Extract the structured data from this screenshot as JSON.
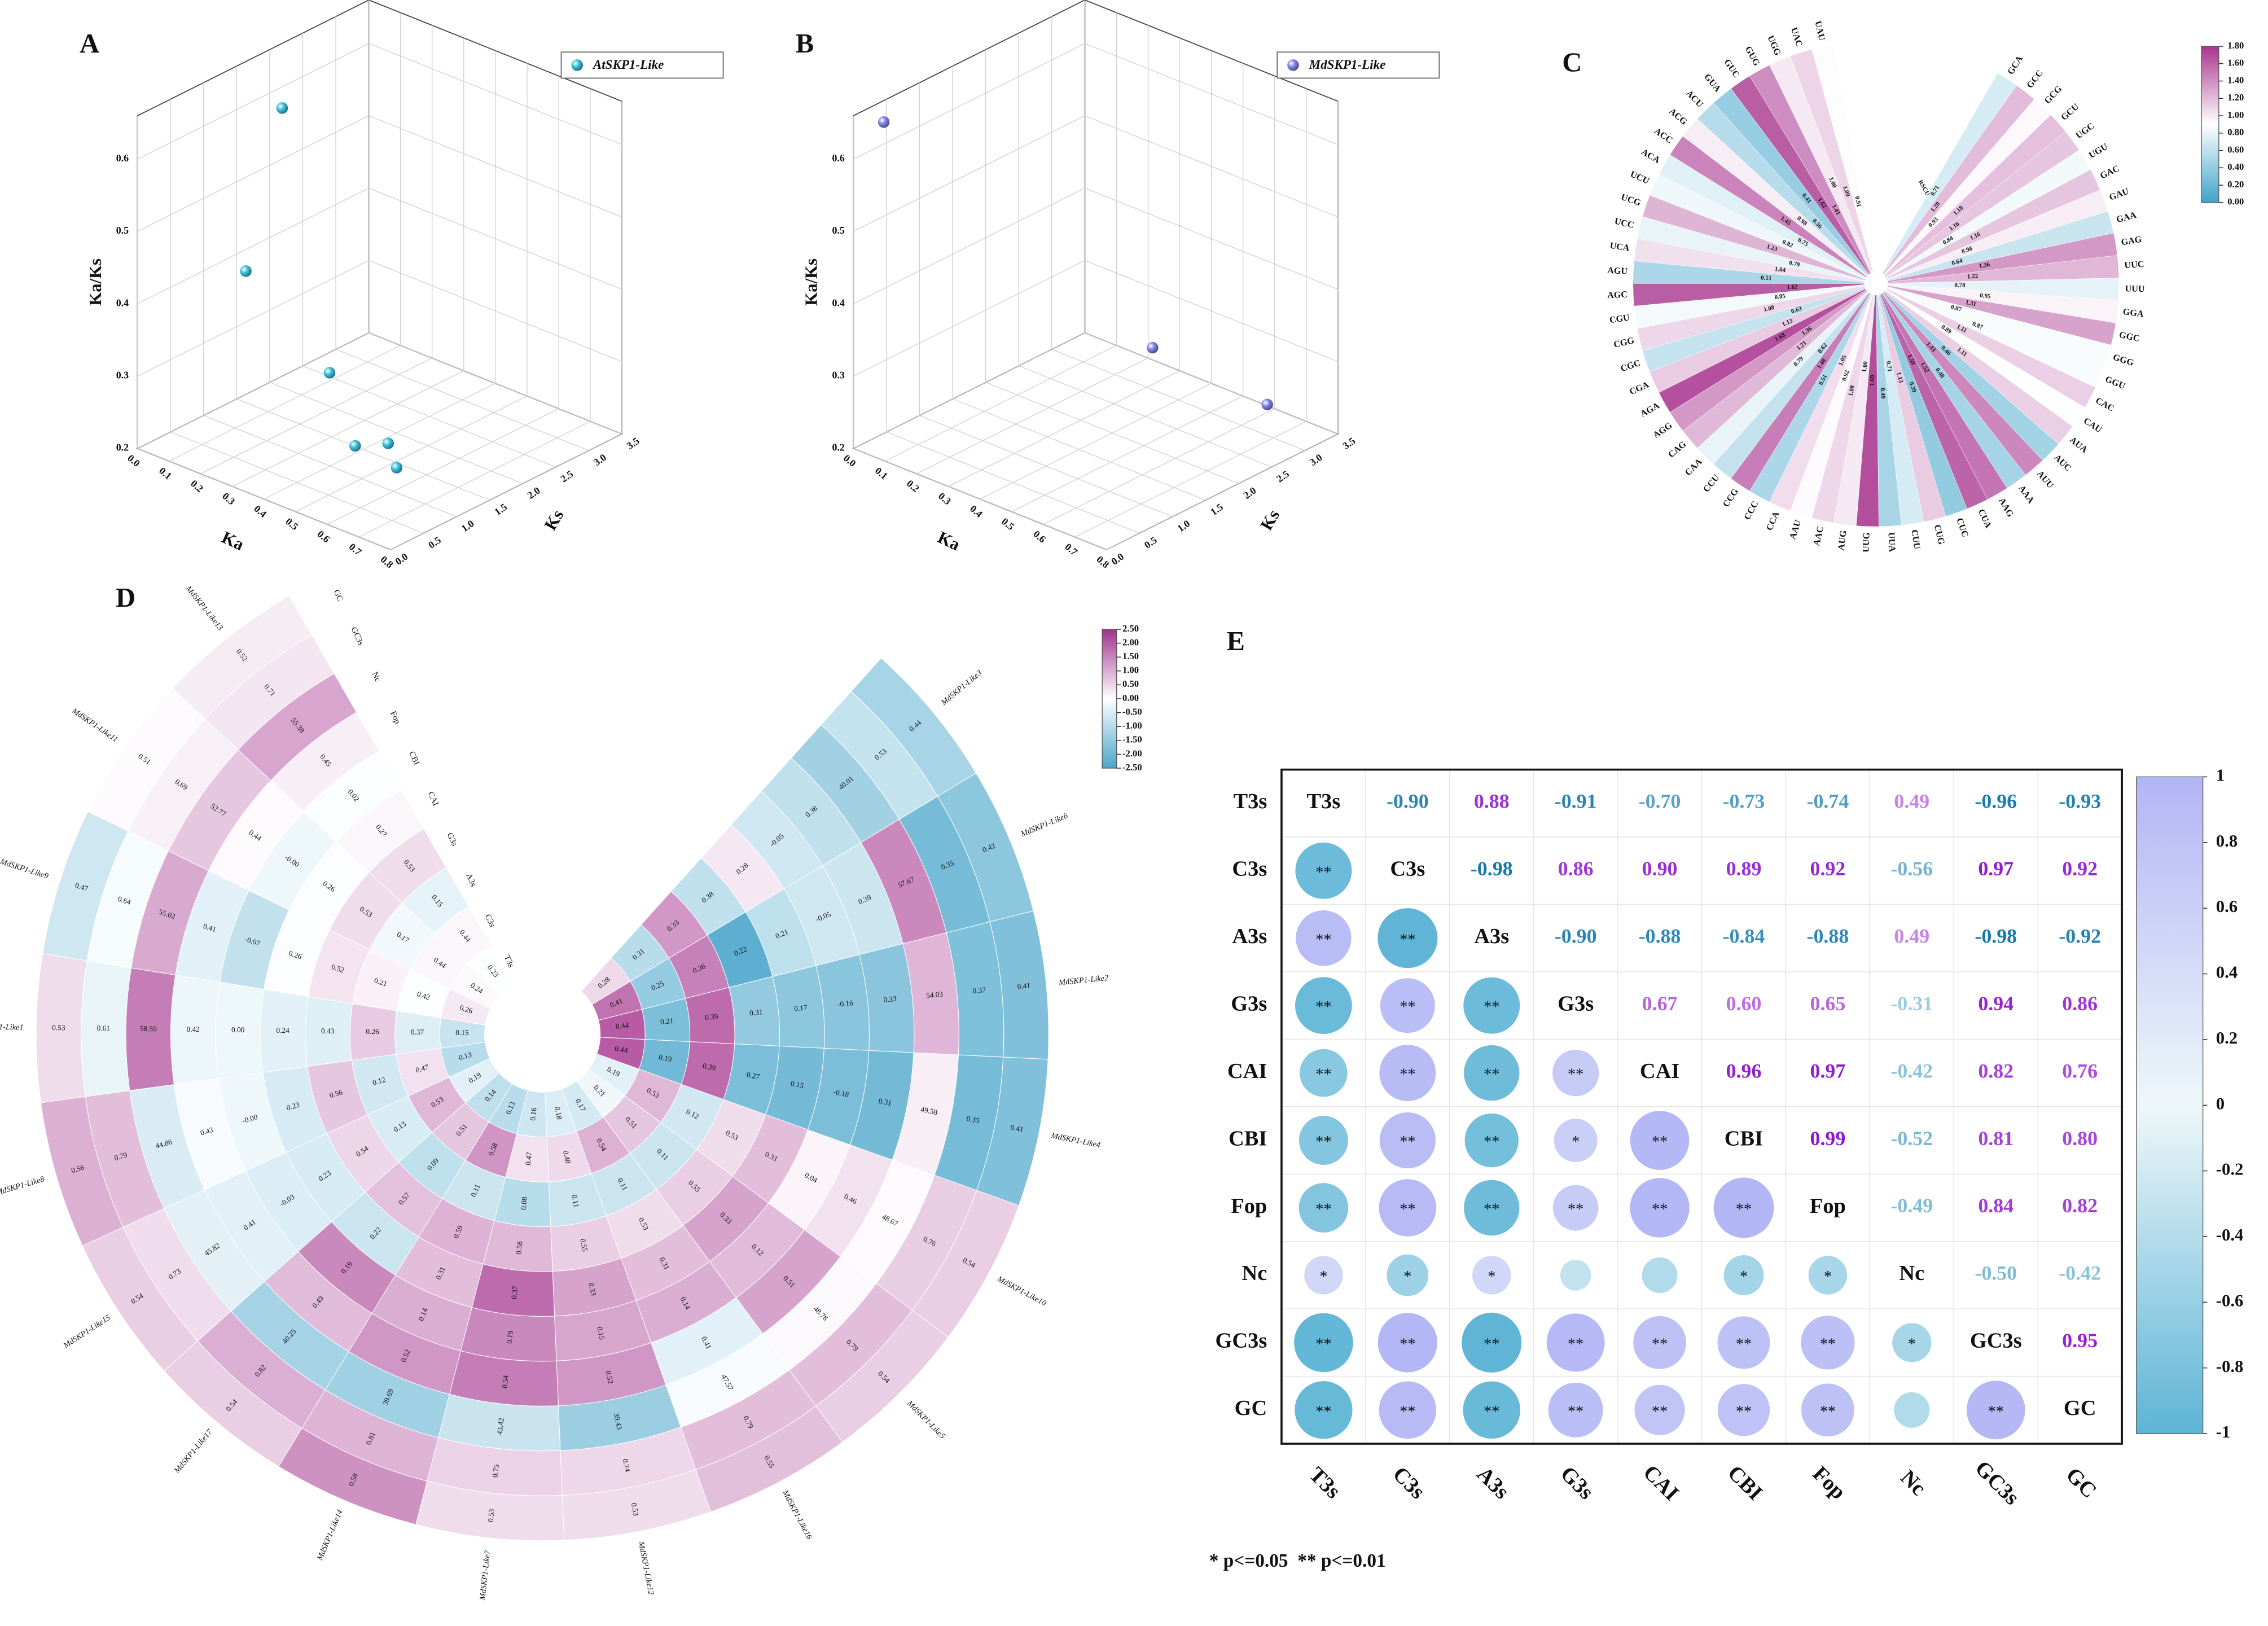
{
  "chart_data": [
    {
      "label": "A",
      "type": "scatter3d",
      "legend": "AtSKP1-Like",
      "color": "#39c0de",
      "x_label": "Ka",
      "y_label": "Ks",
      "z_label": "Ka/Ks",
      "x": [
        0.1,
        0.05,
        0.3,
        0.5,
        0.6,
        0.7
      ],
      "y": [
        1.71,
        1.4,
        1.47,
        0.9,
        0.92,
        0.57
      ],
      "z": [
        0.61,
        0.39,
        0.29,
        0.25,
        0.27,
        0.27
      ],
      "xlim": [
        0,
        0.8
      ],
      "xticks": [
        {
          "value": 0,
          "label": "0.0"
        },
        0.1,
        0.2,
        0.3,
        0.4,
        0.5,
        0.6,
        0.7,
        0.8
      ],
      "ylim": [
        0,
        3.5
      ],
      "yticks": [
        {
          "value": 0,
          "label": "0.0"
        },
        0.5,
        {
          "value": 1,
          "label": "1.0"
        },
        1.5,
        {
          "value": 2,
          "label": "2.0"
        },
        2.5,
        {
          "value": 3,
          "label": "3.0"
        },
        3.5
      ],
      "zlim": [
        0.2,
        0.66
      ],
      "zticks": [
        0.2,
        0.3,
        0.4,
        0.5,
        0.6
      ]
    },
    {
      "label": "B",
      "type": "scatter3d",
      "legend": "MdSKP1-Like",
      "color": "#7f84e6",
      "x_label": "Ka",
      "y_label": "Ks",
      "z_label": "Ka/Ks",
      "x": [
        0.05,
        0.4,
        0.75
      ],
      "y": [
        0.22,
        2.61,
        2.67
      ],
      "z": [
        0.65,
        0.29,
        0.27
      ],
      "xlim": [
        0,
        0.8
      ],
      "xticks": [
        {
          "value": 0,
          "label": "0.0"
        },
        0.1,
        0.2,
        0.3,
        0.4,
        0.5,
        0.6,
        0.7,
        0.8
      ],
      "ylim": [
        0,
        3.5
      ],
      "yticks": [
        {
          "value": 0,
          "label": "0.0"
        },
        0.5,
        {
          "value": 1,
          "label": "1.0"
        },
        1.5,
        {
          "value": 2,
          "label": "2.0"
        },
        2.5,
        {
          "value": 3,
          "label": "3.0"
        },
        3.5
      ],
      "zlim": [
        0.2,
        0.66
      ],
      "zticks": [
        0.2,
        0.3,
        0.4,
        0.5,
        0.6
      ]
    },
    {
      "label": "C",
      "type": "radial_heatmap",
      "value_title": "RSCU",
      "categories": [
        "UAU",
        "UAC",
        "UGG",
        "GUG",
        "GUC",
        "GUA",
        "ACU",
        "ACG",
        "ACC",
        "ACA",
        "UCU",
        "UCG",
        "UCC",
        "UCA",
        "AGU",
        "AGC",
        "CGU",
        "CGG",
        "CGC",
        "CGA",
        "AGA",
        "AGG",
        "CAG",
        "CAA",
        "CCU",
        "CCG",
        "CCC",
        "CCA",
        "AAU",
        "AAC",
        "AUG",
        "UUG",
        "UUA",
        "CUU",
        "CUG",
        "CUC",
        "CUA",
        "AAG",
        "AAA",
        "AUU",
        "AUC",
        "AUA",
        "CAU",
        "CAC",
        "GGU",
        "GGG",
        "GGC",
        "GGA",
        "UUU",
        "UUC",
        "GAG",
        "GAA",
        "GAU",
        "GAC",
        "UGU",
        "UGC",
        "GCU",
        "GCG",
        "GCC",
        "GCA"
      ],
      "values": [
        0.91,
        1.09,
        1,
        1.41,
        1.62,
        0.41,
        0.56,
        0.98,
        1.45,
        0.75,
        0.82,
        1.23,
        0.79,
        1.04,
        0.51,
        1.62,
        0.85,
        1.08,
        0.63,
        1.13,
        1.68,
        1.36,
        1.21,
        0.79,
        0.62,
        1.48,
        0.51,
        1.05,
        0.92,
        1.08,
        1,
        1.69,
        0.49,
        0.71,
        1.13,
        0.39,
        1.59,
        1.52,
        0.48,
        1.43,
        0.46,
        1.11,
        0.89,
        1.11,
        0.87,
        0.87,
        1.31,
        0.95,
        0.78,
        1.22,
        1.36,
        0.64,
        0.98,
        1.16,
        0.84,
        1.16,
        1.18,
        0.93,
        1.2,
        0.71
      ],
      "value_labels": [
        "0.91",
        "1.09",
        "1.00",
        "1.41",
        "1.62",
        "0.41",
        "0.56",
        "0.98",
        "1.45",
        "0.75",
        "0.82",
        "1.23",
        "0.79",
        "1.04",
        "0.51",
        "1.62",
        "0.85",
        "1.08",
        "0.63",
        "1.13",
        "1.68",
        "1.36",
        "1.21",
        "0.79",
        "0.62",
        "1.48",
        "0.51",
        "1.05",
        "0.92",
        "1.08",
        "1.00",
        "1.69",
        "0.49",
        "0.71",
        "1.13",
        "0.39",
        "1.59",
        "1.52",
        "0.48",
        "1.43",
        "0.46",
        "1.11",
        "0.89",
        "1.11",
        "0.87",
        "0.87",
        "1.31",
        "0.95",
        "0.78",
        "1.22",
        "1.36",
        "0.64",
        "0.98",
        "1.16",
        "0.84",
        "1.16",
        "1.18",
        "0.93",
        "1.20",
        "0.71"
      ],
      "colors": [
        "#3fa3c9",
        "#ffffff",
        "#a8358f"
      ],
      "clim": [
        0,
        1.8
      ],
      "cticks": [
        {
          "value": 0,
          "label": "0.00"
        },
        {
          "value": 0.2,
          "label": "0.20"
        },
        {
          "value": 0.4,
          "label": "0.40"
        },
        {
          "value": 0.6,
          "label": "0.60"
        },
        {
          "value": 0.8,
          "label": "0.80"
        },
        {
          "value": 1,
          "label": "1.00"
        },
        {
          "value": 1.2,
          "label": "1.20"
        },
        {
          "value": 1.4,
          "label": "1.40"
        },
        {
          "value": 1.6,
          "label": "1.60"
        },
        {
          "value": 1.8,
          "label": "1.80"
        }
      ]
    },
    {
      "label": "D",
      "type": "circular_heatmap",
      "categories": [
        "MdSKP1-Like13",
        "MdSKP1-Like11",
        "MdSKP1-Like9",
        "MdSKP1-Like1",
        "MdSKP1-Like8",
        "MdSKP1-Like15",
        "MdSKP1-Like17",
        "MdSKP1-Like14",
        "MdSKP1-Like7",
        "MdSKP1-Like12",
        "MdSKP1-Like16",
        "MdSKP1-Like5",
        "MdSKP1-Like10",
        "MdSKP1-Like4",
        "MdSKP1-Like2",
        "MdSKP1-Like6",
        "MdSKP1-Like3"
      ],
      "series": [
        {
          "name": "T3s",
          "values": [
            0.23,
            0.24,
            0.26,
            0.15,
            0.13,
            0.19,
            0.14,
            0.13,
            0.16,
            0.18,
            0.17,
            0.21,
            0.19,
            0.44,
            0.44,
            0.41,
            0.28
          ]
        },
        {
          "name": "C3s",
          "values": [
            0.44,
            0.44,
            0.42,
            0.37,
            0.47,
            0.53,
            0.51,
            0.58,
            0.47,
            0.48,
            0.54,
            0.51,
            0.53,
            0.19,
            0.21,
            0.25,
            0.31
          ]
        },
        {
          "name": "A3s",
          "values": [
            0.15,
            0.17,
            0.21,
            0.26,
            0.12,
            0.13,
            0.09,
            0.11,
            0.08,
            0.11,
            0.11,
            0.11,
            0.12,
            0.39,
            0.39,
            0.36,
            0.33
          ]
        },
        {
          "name": "G3s",
          "values": [
            0.53,
            0.53,
            0.52,
            0.43,
            0.56,
            0.54,
            0.57,
            0.59,
            0.58,
            0.55,
            0.53,
            0.55,
            0.53,
            0.27,
            0.31,
            0.22,
            0.38
          ]
        },
        {
          "name": "CAI",
          "values": [
            0.27,
            0.26,
            0.26,
            0.24,
            0.23,
            0.23,
            0.22,
            0.31,
            0.37,
            0.33,
            0.31,
            0.33,
            0.31,
            0.15,
            0.17,
            0.21,
            0.28
          ]
        },
        {
          "name": "CBI",
          "values": [
            0.02,
            0,
            -0.07,
            0,
            0,
            -0.03,
            0.19,
            0.14,
            0.19,
            0.15,
            0.14,
            0.12,
            0.04,
            -0.18,
            -0.16,
            -0.05,
            -0.05
          ],
          "value_labels": [
            "0.02",
            "-0.00",
            "-0.07",
            "0.00",
            "-0.00",
            "-0.03",
            "0.19",
            "0.14",
            "0.19",
            "0.15",
            "0.14",
            "0.12",
            "0.04",
            "-0.18",
            "-0.16",
            "-0.05",
            "-0.05"
          ]
        },
        {
          "name": "Fop",
          "values": [
            0.45,
            0.44,
            0.41,
            0.42,
            0.43,
            0.41,
            0.49,
            0.52,
            0.54,
            0.52,
            0.41,
            0.51,
            0.46,
            0.31,
            0.33,
            0.39,
            0.38
          ]
        },
        {
          "name": "Nc",
          "values": [
            55.38,
            52.77,
            55.02,
            58.59,
            44.86,
            45.82,
            40.25,
            39.69,
            43.42,
            39.43,
            47.57,
            48.78,
            48.67,
            49.58,
            54.03,
            57.67,
            40.01
          ]
        },
        {
          "name": "GC3s",
          "values": [
            0.71,
            0.69,
            0.64,
            0.61,
            0.79,
            0.73,
            0.82,
            0.81,
            0.75,
            0.74,
            0.79,
            0.79,
            0.76,
            0.35,
            0.37,
            0.35,
            0.53
          ]
        },
        {
          "name": "GC",
          "values": [
            0.52,
            0.51,
            0.47,
            0.53,
            0.56,
            0.54,
            0.54,
            0.58,
            0.53,
            0.53,
            0.55,
            0.54,
            0.54,
            0.41,
            0.41,
            0.42,
            0.44
          ]
        }
      ],
      "colors": [
        "#4ba6cb",
        "#ffffff",
        "#a3318d"
      ],
      "clim": [
        -2.5,
        2.5
      ],
      "cticks": [
        {
          "value": -2.5,
          "label": "-2.50"
        },
        {
          "value": -2,
          "label": "-2.00"
        },
        {
          "value": -1.5,
          "label": "-1.50"
        },
        {
          "value": -1,
          "label": "-1.00"
        },
        {
          "value": -0.5,
          "label": "-0.50"
        },
        {
          "value": 0,
          "label": "0.00"
        },
        {
          "value": 0.5,
          "label": "0.50"
        },
        {
          "value": 1,
          "label": "1.00"
        },
        {
          "value": 1.5,
          "label": "1.50"
        },
        {
          "value": 2,
          "label": "2.00"
        },
        {
          "value": 2.5,
          "label": "2.50"
        }
      ]
    },
    {
      "label": "E",
      "type": "correlation_matrix",
      "variables": [
        "T3s",
        "C3s",
        "A3s",
        "G3s",
        "CAI",
        "CBI",
        "Fop",
        "Nc",
        "GC3s",
        "GC"
      ],
      "r": [
        [
          -0.9,
          0.88,
          -0.91,
          -0.7,
          -0.73,
          -0.74,
          0.49,
          -0.96,
          -0.93
        ],
        [
          -0.98,
          0.86,
          0.9,
          0.89,
          0.92,
          -0.56,
          0.97,
          0.92
        ],
        [
          -0.9,
          -0.88,
          -0.84,
          -0.88,
          0.49,
          -0.98,
          -0.92
        ],
        [
          0.67,
          0.6,
          0.65,
          -0.31,
          0.94,
          0.86
        ],
        [
          0.96,
          0.97,
          -0.42,
          0.82,
          0.76
        ],
        [
          0.99,
          -0.52,
          0.81,
          0.8
        ],
        [
          -0.49,
          0.84,
          0.82
        ],
        [
          -0.5,
          -0.42
        ],
        [
          0.95
        ],
        []
      ],
      "value_labels": [
        [
          "-0.90",
          "0.88",
          "-0.91",
          "-0.70",
          "-0.73",
          "-0.74",
          "0.49",
          "-0.96",
          "-0.93"
        ],
        [
          "-0.98",
          "0.86",
          "0.90",
          "0.89",
          "0.92",
          "-0.56",
          "0.97",
          "0.92"
        ],
        [
          "-0.90",
          "-0.88",
          "-0.84",
          "-0.88",
          "0.49",
          "-0.98",
          "-0.92"
        ],
        [
          "0.67",
          "0.60",
          "0.65",
          "-0.31",
          "0.94",
          "0.86"
        ],
        [
          "0.96",
          "0.97",
          "-0.42",
          "0.82",
          "0.76"
        ],
        [
          "0.99",
          "-0.52",
          "0.81",
          "0.80"
        ],
        [
          "-0.49",
          "0.84",
          "0.82"
        ],
        [
          "-0.50",
          "-0.42"
        ],
        [
          "0.95"
        ],
        []
      ],
      "significance": [
        [],
        [
          "**"
        ],
        [
          "**",
          "**"
        ],
        [
          "**",
          "**",
          "**"
        ],
        [
          "**",
          "**",
          "**",
          "**"
        ],
        [
          "**",
          "**",
          "**",
          "*",
          "**"
        ],
        [
          "**",
          "**",
          "**",
          "**",
          "**",
          "**"
        ],
        [
          "*",
          "*",
          "*",
          null,
          null,
          "*",
          "*"
        ],
        [
          "**",
          "**",
          "**",
          "**",
          "**",
          "**",
          "**",
          "*"
        ],
        [
          "**",
          "**",
          "**",
          "**",
          "**",
          "**",
          "**",
          null,
          "**"
        ]
      ],
      "colors": [
        "#5db4d6",
        "#eef7f9",
        "#b2b5f5"
      ],
      "clim": [
        -1,
        1
      ],
      "cticks": [
        -1,
        -0.8,
        -0.6,
        -0.4,
        -0.2,
        0,
        0.2,
        0.4,
        0.6,
        0.8,
        1
      ],
      "note": "* p<=0.05  ** p<=0.01"
    }
  ]
}
